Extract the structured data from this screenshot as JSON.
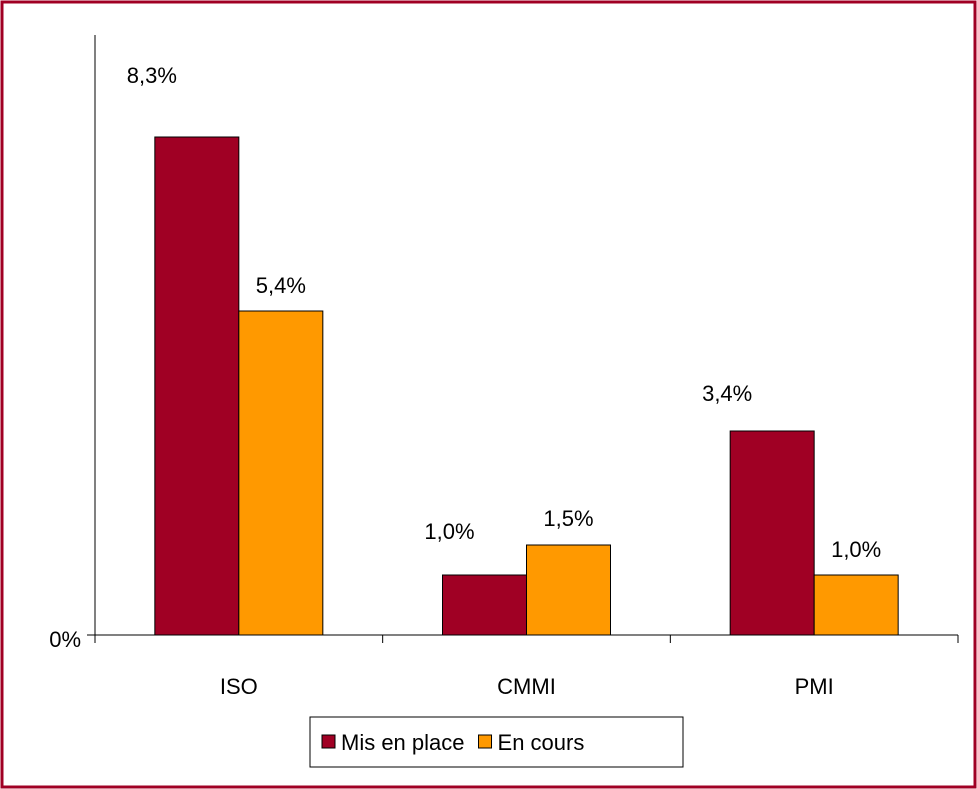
{
  "chart_data": {
    "type": "bar",
    "categories": [
      "ISO",
      "CMMI",
      "PMI"
    ],
    "series": [
      {
        "name": "Mis en place",
        "color": "#a00024",
        "values": [
          8.3,
          1.0,
          3.4
        ],
        "value_labels": [
          "8,3%",
          "1,0%",
          "3,4%"
        ]
      },
      {
        "name": "En cours",
        "color": "#ff9900",
        "values": [
          5.4,
          1.5,
          1.0
        ],
        "value_labels": [
          "5,4%",
          "1,5%",
          "1,0%"
        ]
      }
    ],
    "ylim": [
      0,
      10
    ],
    "yticks": [
      {
        "value": 0,
        "label": "0%"
      }
    ],
    "grid": false,
    "legend": "bottom"
  }
}
